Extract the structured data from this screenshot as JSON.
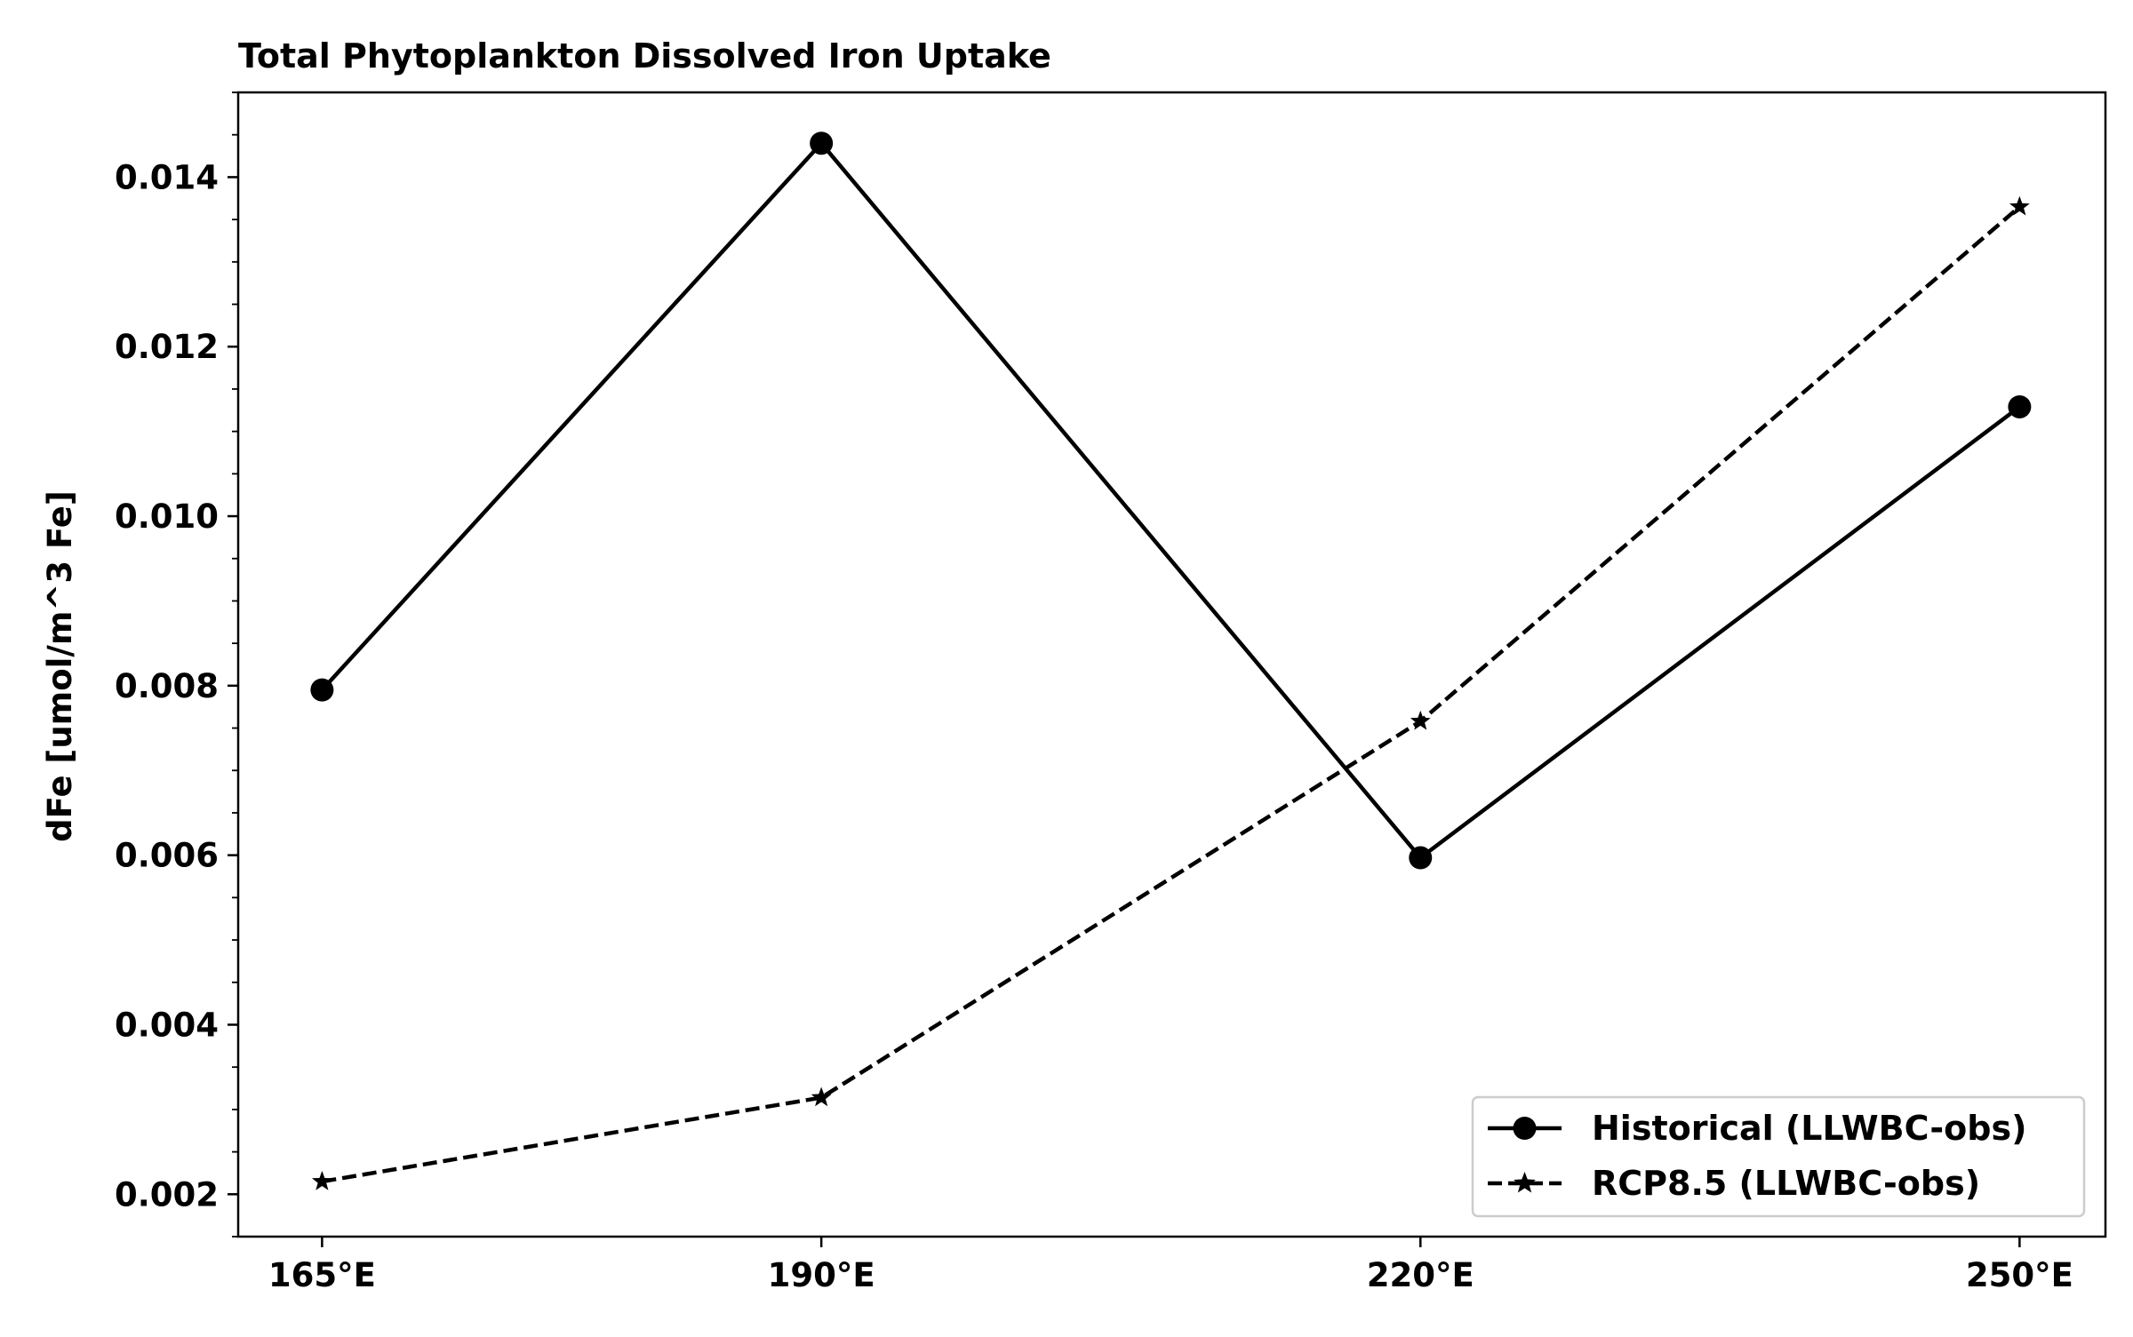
{
  "chart_data": {
    "type": "line",
    "title": "Total Phytoplankton Dissolved Iron Uptake",
    "xlabel": "",
    "ylabel": "dFe [umol/m^3 Fe]",
    "x": [
      165,
      190,
      220,
      250
    ],
    "x_tick_labels": [
      "165°E",
      "190°E",
      "220°E",
      "250°E"
    ],
    "xlim": [
      160.8,
      254.3
    ],
    "y_ticks": [
      0.002,
      0.004,
      0.006,
      0.008,
      0.01,
      0.012,
      0.014
    ],
    "y_tick_labels": [
      "0.002",
      "0.004",
      "0.006",
      "0.008",
      "0.010",
      "0.012",
      "0.014"
    ],
    "ylim": [
      0.0015,
      0.015
    ],
    "grid": false,
    "legend_position": "lower-right",
    "series": [
      {
        "name": "Historical (LLWBC-obs)",
        "values": [
          0.00795,
          0.0144,
          0.00597,
          0.01129
        ],
        "color": "#000000",
        "line_style": "solid",
        "marker": "circle"
      },
      {
        "name": "RCP8.5 (LLWBC-obs)",
        "values": [
          0.00215,
          0.00314,
          0.00758,
          0.01365
        ],
        "color": "#000000",
        "line_style": "dashed",
        "marker": "star"
      }
    ]
  }
}
